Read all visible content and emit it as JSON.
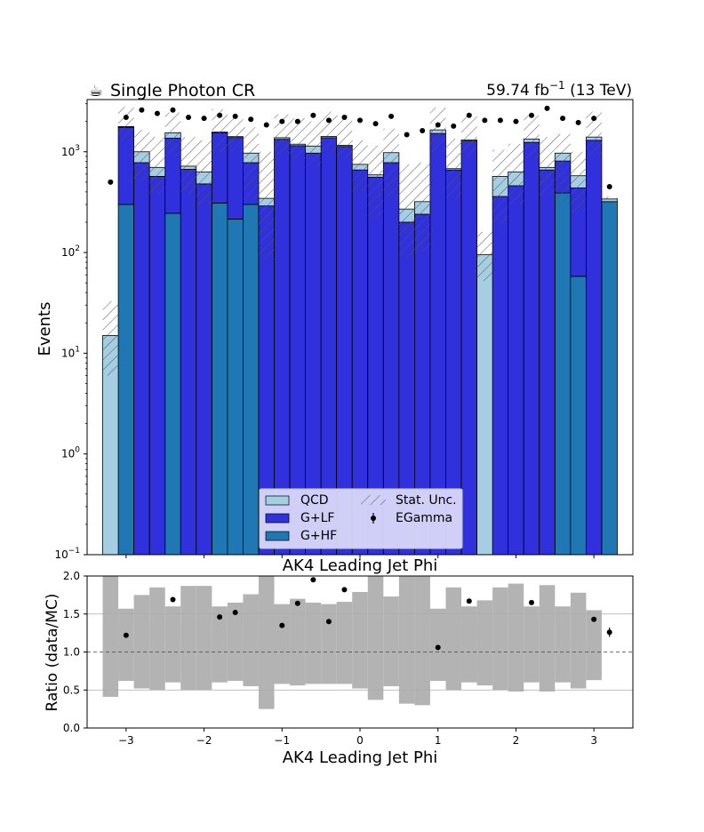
{
  "header": {
    "icon": "coffee-icon",
    "icon_glyph": "☕",
    "title": "Single Photon CR",
    "lumi_value": "59.74 fb",
    "lumi_exp": "−1",
    "lumi_energy": " (13 TeV)"
  },
  "chart_data": [
    {
      "type": "bar",
      "subtype": "stacked-step-histogram",
      "ylabel": "Events",
      "xlabel": "AK4 Leading Jet Phi",
      "yscale": "log",
      "ylim": [
        0.1,
        3300
      ],
      "xlim": [
        -3.5,
        3.5
      ],
      "y_ticks": [
        {
          "value": 0.1,
          "base": "10",
          "exp": "−1"
        },
        {
          "value": 1,
          "base": "10",
          "exp": "0"
        },
        {
          "value": 10,
          "base": "10",
          "exp": "1"
        },
        {
          "value": 100,
          "base": "10",
          "exp": "2"
        },
        {
          "value": 1000,
          "base": "10",
          "exp": "3"
        }
      ],
      "bin_edges": [
        -3.3,
        -3.1,
        -2.9,
        -2.7,
        -2.5,
        -2.3,
        -2.1,
        -1.9,
        -1.7,
        -1.5,
        -1.3,
        -1.1,
        -0.9,
        -0.7,
        -0.5,
        -0.3,
        -0.1,
        0.1,
        0.3,
        0.5,
        0.7,
        0.9,
        1.1,
        1.3,
        1.5,
        1.7,
        1.9,
        2.1,
        2.3,
        2.5,
        2.7,
        2.9,
        3.1,
        3.3
      ],
      "series": [
        {
          "name": "G+HF",
          "color": "#1f77b4",
          "values": [
            0,
            300,
            0,
            0,
            245,
            0,
            0,
            310,
            215,
            300,
            0,
            0,
            0,
            0,
            0,
            0,
            0,
            0,
            0,
            0,
            0,
            0,
            0,
            0,
            0,
            0,
            0,
            0,
            0,
            390,
            58,
            0,
            320
          ]
        },
        {
          "name": "G+LF",
          "color": "#3030dd",
          "values": [
            0,
            1450,
            780,
            570,
            1120,
            670,
            480,
            1230,
            1170,
            480,
            290,
            1330,
            1150,
            970,
            1380,
            1130,
            660,
            560,
            780,
            200,
            240,
            1520,
            660,
            1280,
            0,
            360,
            460,
            1240,
            660,
            420,
            380,
            1300,
            0
          ]
        },
        {
          "name": "QCD",
          "color": "#a6cee3",
          "values": [
            15,
            30,
            220,
            130,
            180,
            50,
            150,
            30,
            30,
            190,
            55,
            50,
            40,
            170,
            40,
            30,
            90,
            30,
            200,
            70,
            80,
            130,
            20,
            30,
            95,
            210,
            170,
            100,
            40,
            160,
            140,
            100,
            20
          ]
        }
      ],
      "stat_unc": {
        "name": "Stat. Unc.",
        "up": [
          33,
          2800,
          1650,
          1400,
          2450,
          1400,
          1300,
          2650,
          2300,
          1750,
          1000,
          2350,
          2150,
          2000,
          2500,
          2300,
          1300,
          1150,
          1700,
          750,
          780,
          2750,
          1350,
          2250,
          160,
          1050,
          1200,
          2300,
          1400,
          1500,
          1000,
          2500,
          360
        ],
        "down": [
          6,
          1300,
          500,
          380,
          900,
          380,
          300,
          1000,
          1000,
          330,
          85,
          950,
          850,
          700,
          1000,
          850,
          400,
          220,
          350,
          90,
          100,
          1000,
          340,
          900,
          52,
          190,
          300,
          850,
          370,
          320,
          250,
          900,
          340
        ]
      },
      "data": {
        "name": "EGamma",
        "x": [
          -3.2,
          -3.0,
          -2.8,
          -2.6,
          -2.4,
          -2.2,
          -2.0,
          -1.8,
          -1.6,
          -1.4,
          -1.2,
          -1.0,
          -0.8,
          -0.6,
          -0.4,
          -0.2,
          0.0,
          0.2,
          0.4,
          0.6,
          0.8,
          1.0,
          1.2,
          1.4,
          1.6,
          1.8,
          2.0,
          2.2,
          2.4,
          2.6,
          2.8,
          3.0,
          3.2
        ],
        "y": [
          500,
          2200,
          2600,
          2400,
          2600,
          2200,
          2150,
          2300,
          2250,
          2100,
          1850,
          2000,
          2000,
          2300,
          2050,
          2200,
          2050,
          1900,
          2250,
          1480,
          1620,
          1850,
          1800,
          2300,
          2050,
          2050,
          2000,
          2300,
          2700,
          2150,
          1950,
          2150,
          450
        ]
      },
      "legend": {
        "placement": "bottom-center",
        "entries": [
          "QCD",
          "G+LF",
          "G+HF",
          "Stat. Unc.",
          "EGamma"
        ]
      }
    },
    {
      "type": "scatter",
      "subtype": "ratio",
      "xlabel": "AK4 Leading Jet Phi",
      "ylabel": "Ratio (data/MC)",
      "ylim": [
        0.0,
        2.0
      ],
      "xlim": [
        -3.5,
        3.5
      ],
      "x_ticks": [
        "−3",
        "−2",
        "−1",
        "0",
        "1",
        "2",
        "3"
      ],
      "y_ticks": [
        "0.0",
        "0.5",
        "1.0",
        "1.5",
        "2.0"
      ],
      "unc_band": {
        "lo": [
          0.41,
          0.62,
          0.52,
          0.5,
          0.6,
          0.5,
          0.5,
          0.6,
          0.62,
          0.55,
          0.25,
          0.58,
          0.56,
          0.58,
          0.58,
          0.58,
          0.52,
          0.37,
          0.55,
          0.32,
          0.3,
          0.62,
          0.5,
          0.6,
          0.56,
          0.5,
          0.48,
          0.6,
          0.48,
          0.6,
          0.52,
          0.63,
          1.0
        ],
        "hi": [
          2.0,
          1.57,
          1.75,
          1.85,
          1.6,
          1.87,
          1.87,
          1.6,
          1.65,
          1.76,
          2.0,
          1.63,
          1.7,
          1.65,
          1.63,
          1.66,
          1.79,
          2.0,
          1.73,
          2.0,
          2.0,
          1.57,
          1.85,
          1.6,
          1.68,
          1.85,
          1.9,
          1.6,
          1.88,
          1.6,
          1.78,
          1.55,
          1.0
        ]
      },
      "points": {
        "x": [
          -3.0,
          -2.4,
          -1.8,
          -1.6,
          -1.0,
          -0.8,
          -0.6,
          -0.4,
          -0.2,
          1.0,
          1.4,
          2.2,
          3.0,
          3.2
        ],
        "y": [
          1.22,
          1.69,
          1.46,
          1.52,
          1.35,
          1.64,
          1.95,
          1.4,
          1.82,
          1.06,
          1.67,
          1.65,
          1.43,
          1.26
        ],
        "err": [
          0.03,
          0.02,
          0.02,
          0.02,
          0.02,
          0.02,
          0.02,
          0.02,
          0.02,
          0.02,
          0.02,
          0.02,
          0.02,
          0.06
        ]
      }
    }
  ]
}
